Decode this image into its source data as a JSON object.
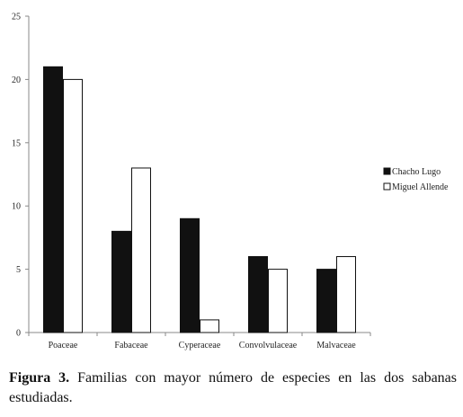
{
  "chart_data": {
    "type": "bar",
    "categories": [
      "Poaceae",
      "Fabaceae",
      "Cyperaceae",
      "Convolvulaceae",
      "Malvaceae"
    ],
    "series": [
      {
        "name": "Chacho Lugo",
        "values": [
          21,
          8,
          9,
          6,
          5
        ],
        "color": "#111111"
      },
      {
        "name": "Miguel Allende",
        "values": [
          20,
          13,
          1,
          5,
          6
        ],
        "color": "#ffffff"
      }
    ],
    "ylim": [
      0,
      25
    ],
    "yticks": [
      0,
      5,
      10,
      15,
      20,
      25
    ],
    "grid": false,
    "legend": "right"
  },
  "caption": {
    "label": "Figura 3.",
    "text": "Familias con mayor número de especies en las dos sabanas estudiadas."
  }
}
